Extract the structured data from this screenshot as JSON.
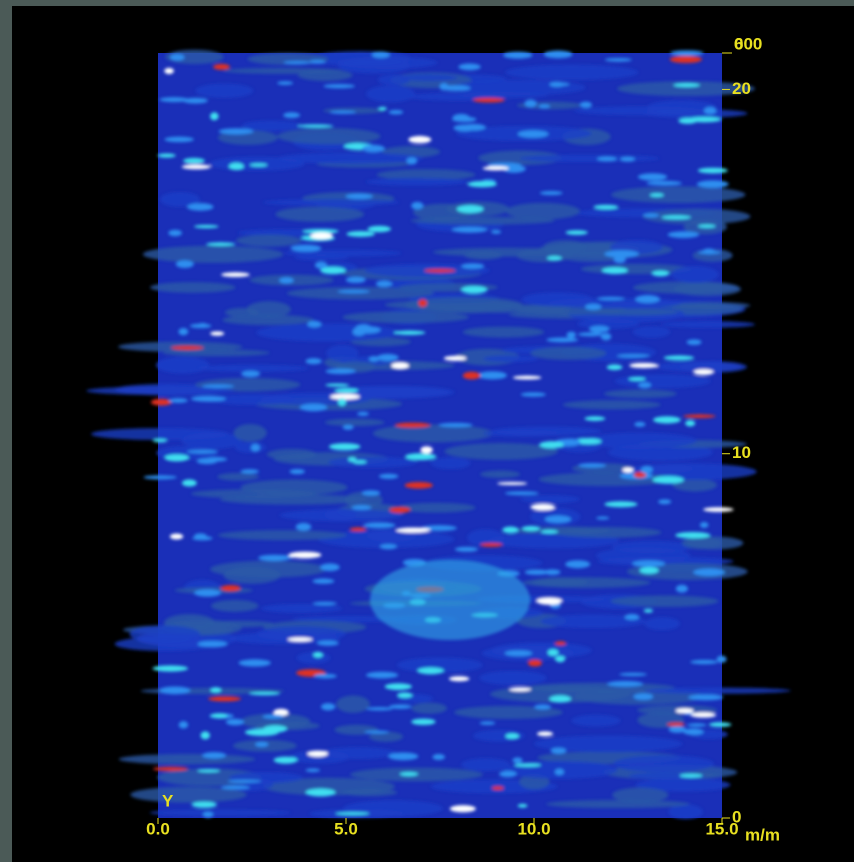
{
  "chart_data": {
    "type": "heatmap",
    "x_label": "m/m",
    "y_label": "Y",
    "xlim": [
      0,
      15
    ],
    "xticks": [
      {
        "value": 0,
        "label": "0.0"
      },
      {
        "value": 5,
        "label": "5.0"
      },
      {
        "value": 10,
        "label": "10.0"
      },
      {
        "value": 15,
        "label": "15.0"
      }
    ],
    "ylim": [
      0,
      21
    ],
    "yticks": [
      0,
      10,
      20
    ],
    "corner_labels": [
      "0",
      "600"
    ],
    "color": "#e8e020"
  }
}
